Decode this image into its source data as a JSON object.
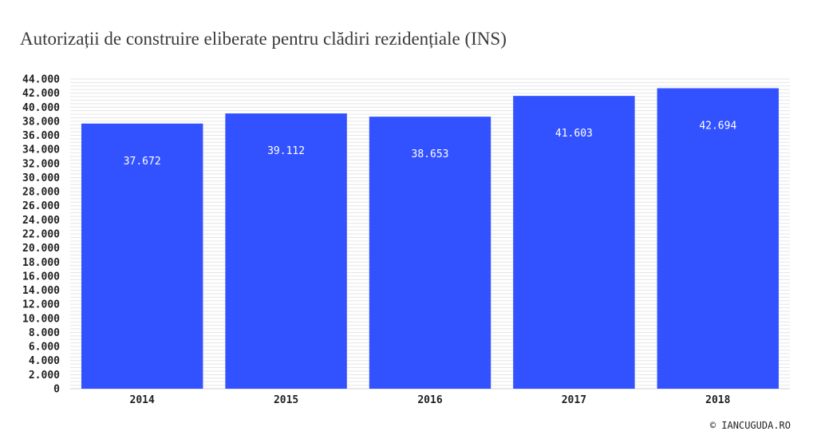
{
  "chart_data": {
    "type": "bar",
    "title": "Autorizații de construire eliberate pentru clădiri rezidențiale (INS)",
    "categories": [
      "2014",
      "2015",
      "2016",
      "2017",
      "2018"
    ],
    "values": [
      37672,
      39112,
      38653,
      41603,
      42694
    ],
    "data_labels": [
      "37.672",
      "39.112",
      "38.653",
      "41.603",
      "42.694"
    ],
    "ylim": [
      0,
      44000
    ],
    "y_ticks": [
      0,
      2000,
      4000,
      6000,
      8000,
      10000,
      12000,
      14000,
      16000,
      18000,
      20000,
      22000,
      24000,
      26000,
      28000,
      30000,
      32000,
      34000,
      36000,
      38000,
      40000,
      42000,
      44000
    ],
    "y_tick_labels": [
      "0",
      "2.000",
      "4.000",
      "6.000",
      "8.000",
      "10.000",
      "12.000",
      "14.000",
      "16.000",
      "18.000",
      "20.000",
      "22.000",
      "24.000",
      "26.000",
      "28.000",
      "30.000",
      "32.000",
      "34.000",
      "36.000",
      "38.000",
      "40.000",
      "42.000",
      "44.000"
    ],
    "xlabel": "",
    "ylabel": "",
    "grid": true,
    "bar_color": "#3352ff"
  },
  "credit": "© IANCUGUDA.RO"
}
